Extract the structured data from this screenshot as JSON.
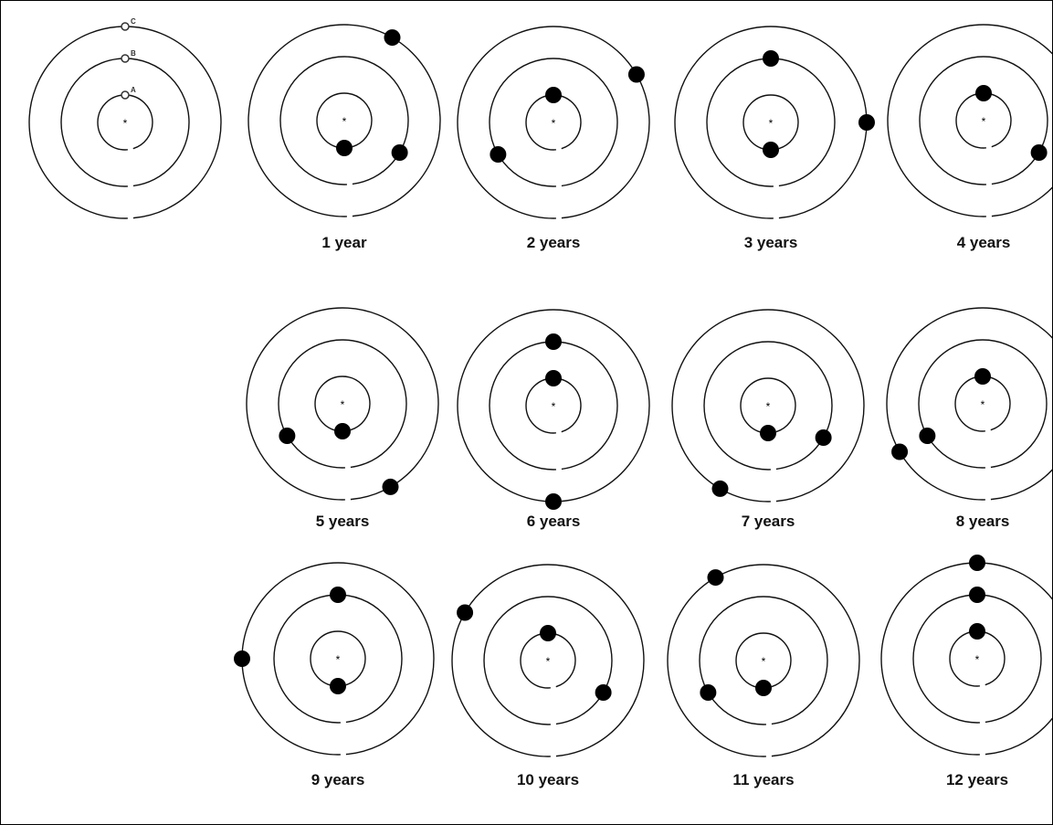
{
  "initial": {
    "labels": [
      "A",
      "B",
      "C"
    ]
  },
  "panels": [
    "1 year",
    "2 years",
    "3 years",
    "4 years",
    "5 years",
    "6 years",
    "7 years",
    "8 years",
    "9 years",
    "10 years",
    "11 years",
    "12 years"
  ]
}
